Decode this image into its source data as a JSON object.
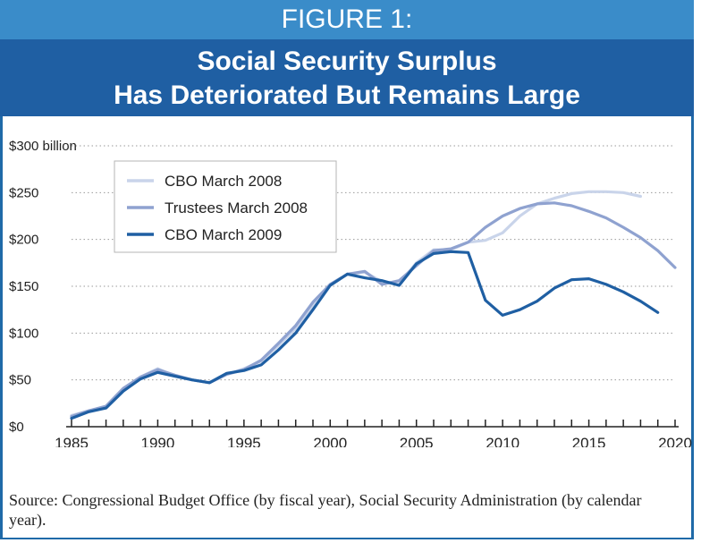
{
  "figure": {
    "label": "FIGURE 1:",
    "title_line1": "Social Security Surplus",
    "title_line2": "Has Deteriorated But Remains Large"
  },
  "source_text": "Source: Congressional Budget Office (by fiscal year), Social Security Administration (by calendar year).",
  "colors": {
    "header_light": "#3a8cc9",
    "header_dark": "#1f5fa3",
    "cbo_2008": "#c9d4ea",
    "trustees_2008": "#8fa2d0",
    "cbo_2009": "#1f5fa3"
  },
  "chart_data": {
    "type": "line",
    "title": "",
    "xlabel": "",
    "ylabel": "",
    "xlim": [
      1985,
      2020
    ],
    "ylim": [
      0,
      300
    ],
    "x_ticks": [
      "1985",
      "1990",
      "1995",
      "2000",
      "2005",
      "2010",
      "2015",
      "2020"
    ],
    "y_ticks": [
      "$0",
      "$50",
      "$100",
      "$150",
      "$200",
      "$250",
      "$300 billion"
    ],
    "y_tick_values": [
      0,
      50,
      100,
      150,
      200,
      250,
      300
    ],
    "grid": "horizontal-dotted",
    "legend": "top-left",
    "series": [
      {
        "name": "CBO March 2008",
        "color": "#c9d4ea",
        "points": [
          [
            1985,
            12
          ],
          [
            1986,
            17
          ],
          [
            1987,
            20
          ],
          [
            1988,
            40
          ],
          [
            1989,
            53
          ],
          [
            1990,
            62
          ],
          [
            1991,
            54
          ],
          [
            1992,
            50
          ],
          [
            1993,
            47
          ],
          [
            1994,
            56
          ],
          [
            1995,
            62
          ],
          [
            1996,
            70
          ],
          [
            1997,
            87
          ],
          [
            1998,
            105
          ],
          [
            1999,
            130
          ],
          [
            2000,
            152
          ],
          [
            2001,
            163
          ],
          [
            2002,
            165
          ],
          [
            2003,
            155
          ],
          [
            2004,
            153
          ],
          [
            2005,
            175
          ],
          [
            2006,
            189
          ],
          [
            2007,
            189
          ],
          [
            2008,
            197
          ],
          [
            2009,
            199
          ],
          [
            2010,
            207
          ],
          [
            2011,
            225
          ],
          [
            2012,
            238
          ],
          [
            2013,
            244
          ],
          [
            2014,
            249
          ],
          [
            2015,
            251
          ],
          [
            2016,
            251
          ],
          [
            2017,
            250
          ],
          [
            2018,
            246
          ]
        ]
      },
      {
        "name": "Trustees March 2008",
        "color": "#8fa2d0",
        "points": [
          [
            1985,
            11
          ],
          [
            1986,
            17
          ],
          [
            1987,
            22
          ],
          [
            1988,
            41
          ],
          [
            1989,
            53
          ],
          [
            1990,
            61
          ],
          [
            1991,
            55
          ],
          [
            1992,
            50
          ],
          [
            1993,
            47
          ],
          [
            1994,
            56
          ],
          [
            1995,
            61
          ],
          [
            1996,
            71
          ],
          [
            1997,
            89
          ],
          [
            1998,
            108
          ],
          [
            1999,
            133
          ],
          [
            2000,
            152
          ],
          [
            2001,
            163
          ],
          [
            2002,
            166
          ],
          [
            2003,
            152
          ],
          [
            2004,
            156
          ],
          [
            2005,
            172
          ],
          [
            2006,
            188
          ],
          [
            2007,
            190
          ],
          [
            2008,
            197
          ],
          [
            2009,
            213
          ],
          [
            2010,
            225
          ],
          [
            2011,
            233
          ],
          [
            2012,
            238
          ],
          [
            2013,
            239
          ],
          [
            2014,
            236
          ],
          [
            2015,
            230
          ],
          [
            2016,
            223
          ],
          [
            2017,
            213
          ],
          [
            2018,
            202
          ],
          [
            2019,
            188
          ],
          [
            2020,
            170
          ]
        ]
      },
      {
        "name": "CBO March 2009",
        "color": "#1f5fa3",
        "points": [
          [
            1985,
            9
          ],
          [
            1986,
            16
          ],
          [
            1987,
            20
          ],
          [
            1988,
            38
          ],
          [
            1989,
            51
          ],
          [
            1990,
            58
          ],
          [
            1991,
            54
          ],
          [
            1992,
            50
          ],
          [
            1993,
            47
          ],
          [
            1994,
            57
          ],
          [
            1995,
            60
          ],
          [
            1996,
            66
          ],
          [
            1997,
            82
          ],
          [
            1998,
            100
          ],
          [
            1999,
            125
          ],
          [
            2000,
            151
          ],
          [
            2001,
            163
          ],
          [
            2002,
            159
          ],
          [
            2003,
            156
          ],
          [
            2004,
            151
          ],
          [
            2005,
            174
          ],
          [
            2006,
            185
          ],
          [
            2007,
            187
          ],
          [
            2008,
            186
          ],
          [
            2009,
            135
          ],
          [
            2010,
            119
          ],
          [
            2011,
            125
          ],
          [
            2012,
            134
          ],
          [
            2013,
            148
          ],
          [
            2014,
            157
          ],
          [
            2015,
            158
          ],
          [
            2016,
            152
          ],
          [
            2017,
            144
          ],
          [
            2018,
            134
          ],
          [
            2019,
            122
          ]
        ]
      }
    ]
  }
}
